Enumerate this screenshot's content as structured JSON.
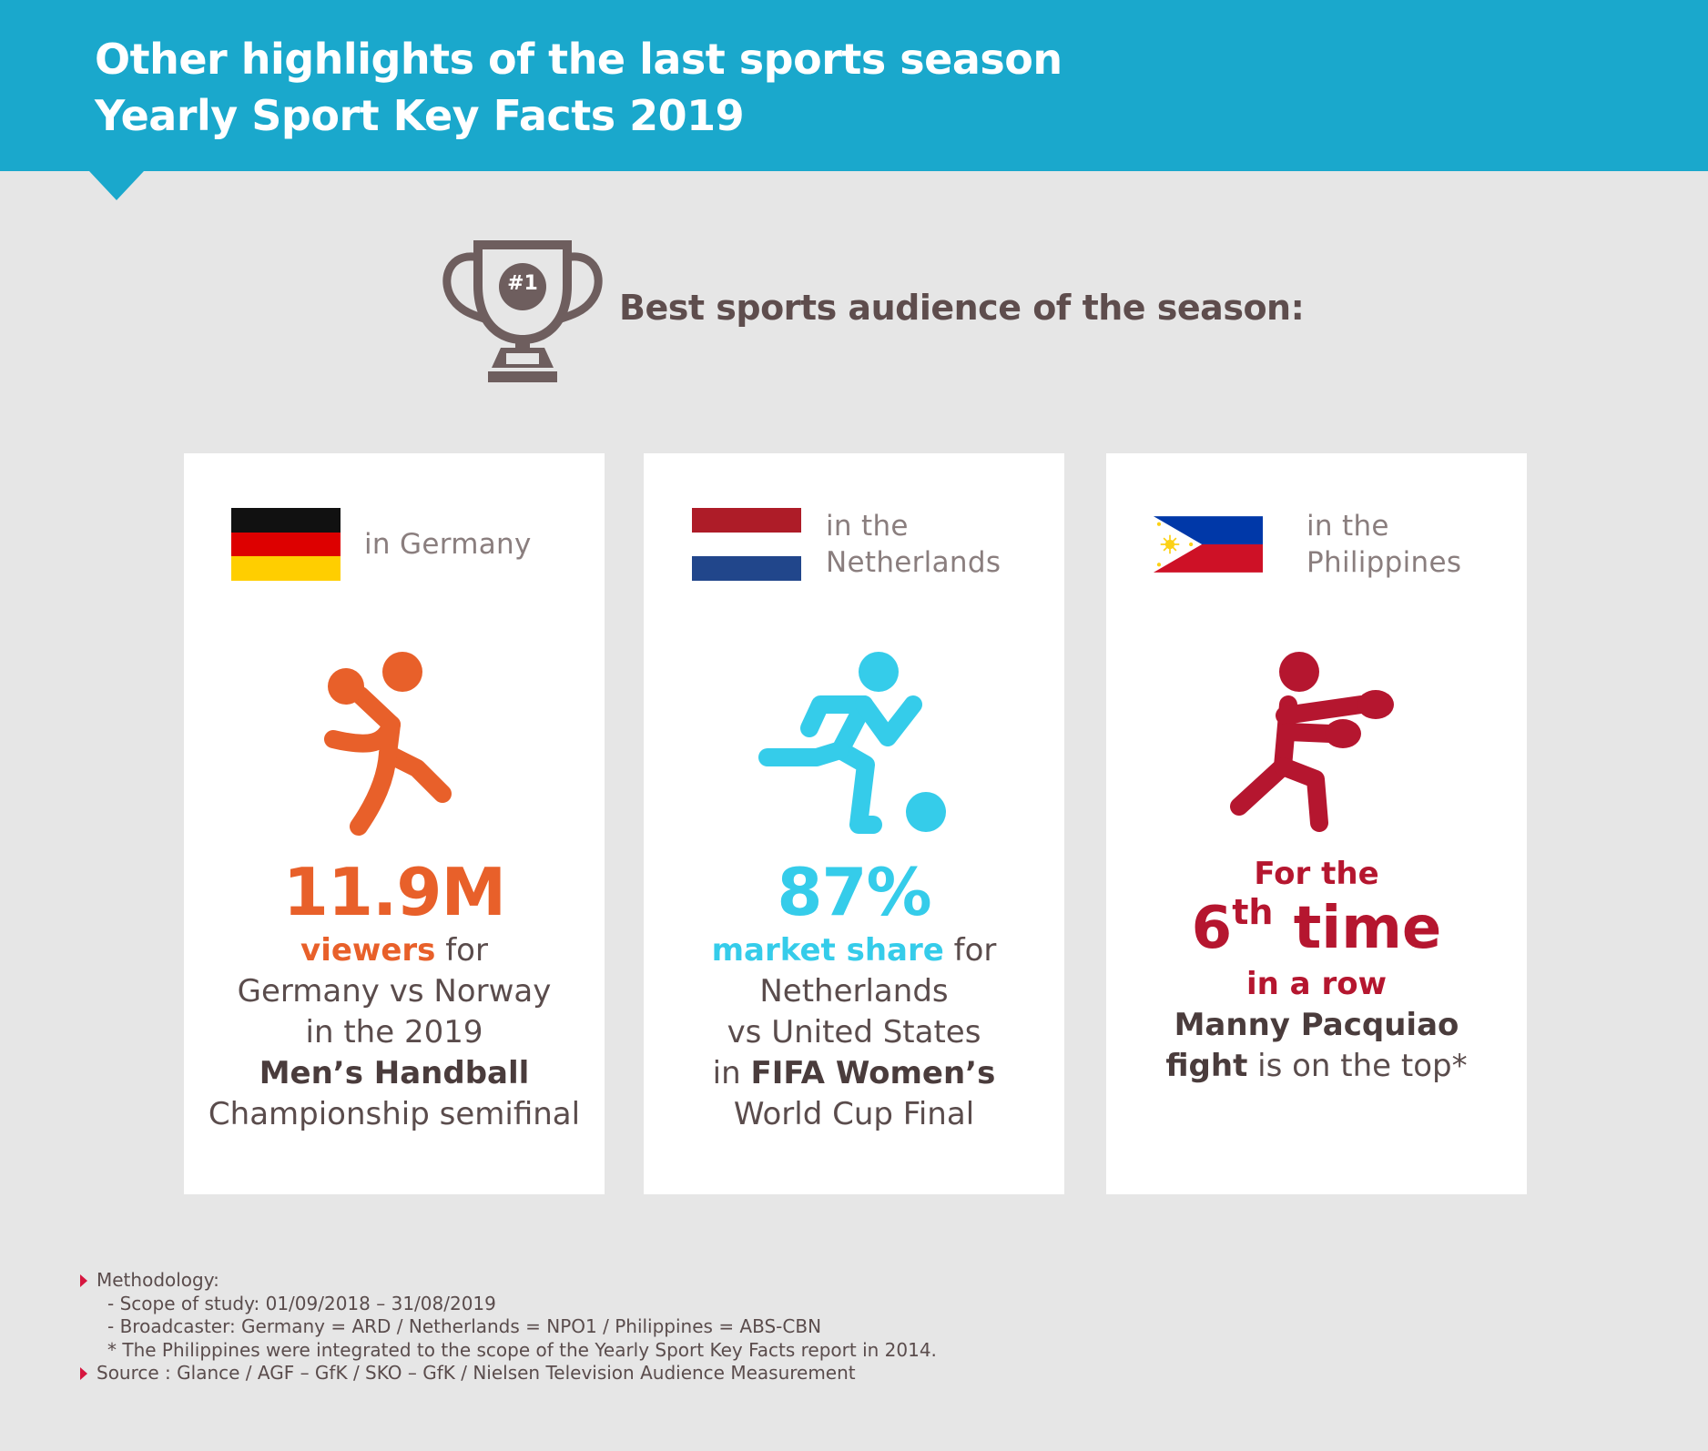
{
  "header": {
    "title_line1": "Other highlights of the last sports season",
    "title_line2": "Yearly Sport Key Facts 2019"
  },
  "trophy": {
    "badge": "#1",
    "label": "Best sports audience of the season:"
  },
  "cards": [
    {
      "country_line1": "in Germany",
      "country_line2": "",
      "flag": "germany-flag",
      "icon": "handball-player-icon",
      "accent_color": "#e8602a",
      "value": "11.9M",
      "highlight": "viewers",
      "text_after_highlight": " for",
      "line2": "Germany vs Norway",
      "line3": "in the 2019",
      "line4_bold": "Men’s Handball",
      "line5": "Championship semifinal"
    },
    {
      "country_line1": "in the",
      "country_line2": "Netherlands",
      "flag": "netherlands-flag",
      "icon": "football-player-icon",
      "accent_color": "#35ccea",
      "value": "87%",
      "highlight": "market share",
      "text_after_highlight": " for",
      "line2": "Netherlands",
      "line3": "vs United States",
      "line4_prefix": "in ",
      "line4_bold": "FIFA Women’s",
      "line5": "World Cup Final"
    },
    {
      "country_line1": "in the",
      "country_line2": "Philippines",
      "flag": "philippines-flag",
      "icon": "boxer-icon",
      "accent_color": "#b5162f",
      "line1": "For the",
      "ordinal_number": "6",
      "ordinal_suffix": "th",
      "ordinal_word": " time",
      "line3": "in a row",
      "line4_bold": "Manny Pacquiao",
      "line5_bold": "fight",
      "line5_rest": " is on the top*"
    }
  ],
  "footnotes": {
    "methodology_label": "Methodology:",
    "scope": "- Scope of study: 01/09/2018 – 31/08/2019",
    "broadcaster": "- Broadcaster: Germany = ARD / Netherlands = NPO1 / Philippines = ABS-CBN",
    "note": "* The Philippines were integrated to the scope of the Yearly Sport Key Facts report in 2014.",
    "source": "Source : Glance / AGF – GfK / SKO – GfK / Nielsen Television Audience Measurement"
  },
  "colors": {
    "header_bg": "#1aa8cc",
    "page_bg": "#e6e6e6",
    "trophy": "#6e5e5e",
    "bullet": "#d6163f"
  }
}
